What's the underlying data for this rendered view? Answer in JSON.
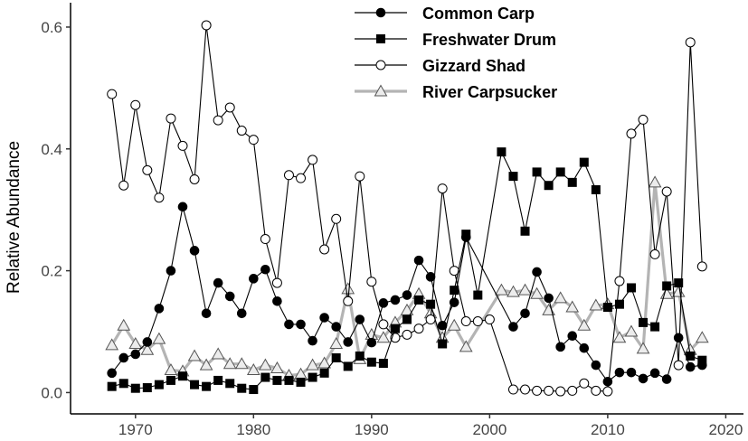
{
  "chart_data": {
    "type": "line",
    "title": "",
    "xlabel": "",
    "ylabel": "Relative Abundance",
    "xlim": [
      1964.5,
      2021.5
    ],
    "ylim": [
      -0.035,
      0.64
    ],
    "xticks": [
      1970,
      1980,
      1990,
      2000,
      2010,
      2020
    ],
    "yticks": [
      0.0,
      0.2,
      0.4,
      0.6
    ],
    "xtick_labels": [
      "1970",
      "1980",
      "1990",
      "2000",
      "2010",
      "2020"
    ],
    "ytick_labels": [
      "0.0",
      "0.2",
      "0.4",
      "0.6"
    ],
    "grid": false,
    "legend_position": "top-center",
    "series": [
      {
        "name": "Common Carp",
        "marker": "filled-circle",
        "color": "#000000",
        "points": [
          [
            1968,
            0.032
          ],
          [
            1969,
            0.057
          ],
          [
            1970,
            0.063
          ],
          [
            1971,
            0.083
          ],
          [
            1972,
            0.138
          ],
          [
            1973,
            0.2
          ],
          [
            1974,
            0.305
          ],
          [
            1975,
            0.233
          ],
          [
            1976,
            0.13
          ],
          [
            1977,
            0.18
          ],
          [
            1978,
            0.158
          ],
          [
            1979,
            0.13
          ],
          [
            1980,
            0.187
          ],
          [
            1981,
            0.202
          ],
          [
            1982,
            0.15
          ],
          [
            1983,
            0.112
          ],
          [
            1984,
            0.112
          ],
          [
            1985,
            0.085
          ],
          [
            1986,
            0.123
          ],
          [
            1987,
            0.108
          ],
          [
            1988,
            0.083
          ],
          [
            1989,
            0.12
          ],
          [
            1990,
            0.082
          ],
          [
            1991,
            0.147
          ],
          [
            1992,
            0.152
          ],
          [
            1993,
            0.16
          ],
          [
            1994,
            0.217
          ],
          [
            1995,
            0.19
          ],
          [
            1996,
            0.11
          ],
          [
            1997,
            0.148
          ],
          [
            1998,
            0.255
          ],
          [
            2002,
            0.108
          ],
          [
            2003,
            0.13
          ],
          [
            2004,
            0.198
          ],
          [
            2005,
            0.155
          ],
          [
            2006,
            0.075
          ],
          [
            2007,
            0.093
          ],
          [
            2008,
            0.073
          ],
          [
            2009,
            0.045
          ],
          [
            2010,
            0.018
          ],
          [
            2011,
            0.033
          ],
          [
            2012,
            0.033
          ],
          [
            2013,
            0.023
          ],
          [
            2014,
            0.032
          ],
          [
            2015,
            0.022
          ],
          [
            2016,
            0.09
          ],
          [
            2017,
            0.042
          ],
          [
            2018,
            0.045
          ]
        ]
      },
      {
        "name": "Freshwater Drum",
        "marker": "filled-square",
        "color": "#000000",
        "points": [
          [
            1968,
            0.01
          ],
          [
            1969,
            0.015
          ],
          [
            1970,
            0.007
          ],
          [
            1971,
            0.008
          ],
          [
            1972,
            0.013
          ],
          [
            1973,
            0.02
          ],
          [
            1974,
            0.027
          ],
          [
            1975,
            0.013
          ],
          [
            1976,
            0.01
          ],
          [
            1977,
            0.02
          ],
          [
            1978,
            0.015
          ],
          [
            1979,
            0.007
          ],
          [
            1980,
            0.005
          ],
          [
            1981,
            0.025
          ],
          [
            1982,
            0.02
          ],
          [
            1983,
            0.02
          ],
          [
            1984,
            0.017
          ],
          [
            1985,
            0.025
          ],
          [
            1986,
            0.032
          ],
          [
            1987,
            0.057
          ],
          [
            1988,
            0.043
          ],
          [
            1989,
            0.06
          ],
          [
            1990,
            0.05
          ],
          [
            1991,
            0.048
          ],
          [
            1992,
            0.105
          ],
          [
            1993,
            0.12
          ],
          [
            1994,
            0.152
          ],
          [
            1995,
            0.145
          ],
          [
            1996,
            0.08
          ],
          [
            1997,
            0.168
          ],
          [
            1998,
            0.26
          ],
          [
            1999,
            0.16
          ],
          [
            2001,
            0.395
          ],
          [
            2002,
            0.355
          ],
          [
            2003,
            0.265
          ],
          [
            2004,
            0.362
          ],
          [
            2005,
            0.34
          ],
          [
            2006,
            0.362
          ],
          [
            2007,
            0.345
          ],
          [
            2008,
            0.378
          ],
          [
            2009,
            0.333
          ],
          [
            2010,
            0.14
          ],
          [
            2011,
            0.145
          ],
          [
            2012,
            0.172
          ],
          [
            2013,
            0.115
          ],
          [
            2014,
            0.108
          ],
          [
            2015,
            0.175
          ],
          [
            2016,
            0.18
          ],
          [
            2017,
            0.06
          ],
          [
            2018,
            0.053
          ]
        ]
      },
      {
        "name": "Gizzard Shad",
        "marker": "open-circle",
        "color": "#000000",
        "points": [
          [
            1968,
            0.49
          ],
          [
            1969,
            0.34
          ],
          [
            1970,
            0.472
          ],
          [
            1971,
            0.365
          ],
          [
            1972,
            0.32
          ],
          [
            1973,
            0.45
          ],
          [
            1974,
            0.405
          ],
          [
            1975,
            0.35
          ],
          [
            1976,
            0.603
          ],
          [
            1977,
            0.447
          ],
          [
            1978,
            0.468
          ],
          [
            1979,
            0.43
          ],
          [
            1980,
            0.415
          ],
          [
            1981,
            0.252
          ],
          [
            1982,
            0.18
          ],
          [
            1983,
            0.357
          ],
          [
            1984,
            0.352
          ],
          [
            1985,
            0.382
          ],
          [
            1986,
            0.235
          ],
          [
            1987,
            0.285
          ],
          [
            1988,
            0.15
          ],
          [
            1989,
            0.355
          ],
          [
            1990,
            0.182
          ],
          [
            1991,
            0.112
          ],
          [
            1992,
            0.09
          ],
          [
            1993,
            0.095
          ],
          [
            1994,
            0.105
          ],
          [
            1995,
            0.12
          ],
          [
            1996,
            0.335
          ],
          [
            1997,
            0.2
          ],
          [
            1998,
            0.117
          ],
          [
            1999,
            0.117
          ],
          [
            2000,
            0.12
          ],
          [
            2002,
            0.005
          ],
          [
            2003,
            0.005
          ],
          [
            2004,
            0.003
          ],
          [
            2005,
            0.003
          ],
          [
            2006,
            0.002
          ],
          [
            2007,
            0.003
          ],
          [
            2008,
            0.015
          ],
          [
            2009,
            0.003
          ],
          [
            2010,
            0.002
          ],
          [
            2011,
            0.183
          ],
          [
            2012,
            0.425
          ],
          [
            2013,
            0.448
          ],
          [
            2014,
            0.227
          ],
          [
            2015,
            0.33
          ],
          [
            2016,
            0.045
          ],
          [
            2017,
            0.575
          ],
          [
            2018,
            0.207
          ]
        ]
      },
      {
        "name": "River Carpsucker",
        "marker": "open-triangle",
        "color": "#b4b4b4",
        "points": [
          [
            1968,
            0.078
          ],
          [
            1969,
            0.11
          ],
          [
            1970,
            0.08
          ],
          [
            1971,
            0.07
          ],
          [
            1972,
            0.088
          ],
          [
            1973,
            0.037
          ],
          [
            1974,
            0.035
          ],
          [
            1975,
            0.06
          ],
          [
            1976,
            0.045
          ],
          [
            1977,
            0.063
          ],
          [
            1978,
            0.047
          ],
          [
            1979,
            0.047
          ],
          [
            1980,
            0.037
          ],
          [
            1981,
            0.045
          ],
          [
            1982,
            0.04
          ],
          [
            1983,
            0.028
          ],
          [
            1984,
            0.03
          ],
          [
            1985,
            0.045
          ],
          [
            1986,
            0.048
          ],
          [
            1987,
            0.08
          ],
          [
            1988,
            0.17
          ],
          [
            1989,
            0.055
          ],
          [
            1990,
            0.095
          ],
          [
            1991,
            0.09
          ],
          [
            1992,
            0.115
          ],
          [
            1993,
            0.135
          ],
          [
            1994,
            0.162
          ],
          [
            1995,
            0.13
          ],
          [
            1996,
            0.09
          ],
          [
            1997,
            0.11
          ],
          [
            1998,
            0.075
          ],
          [
            2001,
            0.168
          ],
          [
            2002,
            0.165
          ],
          [
            2003,
            0.168
          ],
          [
            2004,
            0.162
          ],
          [
            2005,
            0.135
          ],
          [
            2006,
            0.155
          ],
          [
            2007,
            0.14
          ],
          [
            2008,
            0.11
          ],
          [
            2009,
            0.143
          ],
          [
            2010,
            0.145
          ],
          [
            2011,
            0.09
          ],
          [
            2012,
            0.1
          ],
          [
            2013,
            0.072
          ],
          [
            2014,
            0.345
          ],
          [
            2015,
            0.162
          ],
          [
            2016,
            0.165
          ],
          [
            2017,
            0.07
          ],
          [
            2018,
            0.09
          ]
        ]
      }
    ]
  }
}
